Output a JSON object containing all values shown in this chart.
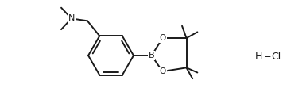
{
  "bg_color": "#ffffff",
  "line_color": "#1a1a1a",
  "N_color": "#1a1a1a",
  "lw": 1.4,
  "figsize": [
    3.85,
    1.4
  ],
  "dpi": 100,
  "xlim": [
    0.0,
    10.5
  ],
  "ylim": [
    0.2,
    3.6
  ]
}
